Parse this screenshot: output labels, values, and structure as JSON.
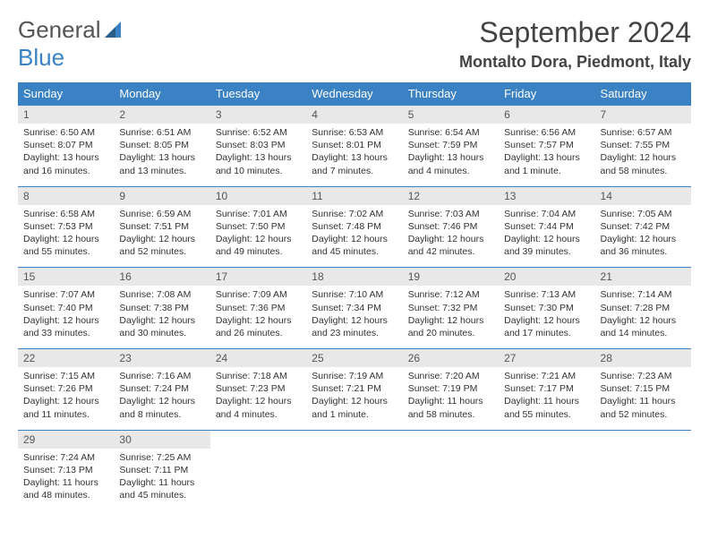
{
  "brand": {
    "part1": "General",
    "part2": "Blue"
  },
  "title": "September 2024",
  "location": "Montalto Dora, Piedmont, Italy",
  "colors": {
    "accent": "#3b82c4",
    "grey": "#e8e8e8",
    "text": "#333"
  },
  "dayNames": [
    "Sunday",
    "Monday",
    "Tuesday",
    "Wednesday",
    "Thursday",
    "Friday",
    "Saturday"
  ],
  "weeks": [
    [
      {
        "n": "1",
        "sr": "Sunrise: 6:50 AM",
        "ss": "Sunset: 8:07 PM",
        "d1": "Daylight: 13 hours",
        "d2": "and 16 minutes."
      },
      {
        "n": "2",
        "sr": "Sunrise: 6:51 AM",
        "ss": "Sunset: 8:05 PM",
        "d1": "Daylight: 13 hours",
        "d2": "and 13 minutes."
      },
      {
        "n": "3",
        "sr": "Sunrise: 6:52 AM",
        "ss": "Sunset: 8:03 PM",
        "d1": "Daylight: 13 hours",
        "d2": "and 10 minutes."
      },
      {
        "n": "4",
        "sr": "Sunrise: 6:53 AM",
        "ss": "Sunset: 8:01 PM",
        "d1": "Daylight: 13 hours",
        "d2": "and 7 minutes."
      },
      {
        "n": "5",
        "sr": "Sunrise: 6:54 AM",
        "ss": "Sunset: 7:59 PM",
        "d1": "Daylight: 13 hours",
        "d2": "and 4 minutes."
      },
      {
        "n": "6",
        "sr": "Sunrise: 6:56 AM",
        "ss": "Sunset: 7:57 PM",
        "d1": "Daylight: 13 hours",
        "d2": "and 1 minute."
      },
      {
        "n": "7",
        "sr": "Sunrise: 6:57 AM",
        "ss": "Sunset: 7:55 PM",
        "d1": "Daylight: 12 hours",
        "d2": "and 58 minutes."
      }
    ],
    [
      {
        "n": "8",
        "sr": "Sunrise: 6:58 AM",
        "ss": "Sunset: 7:53 PM",
        "d1": "Daylight: 12 hours",
        "d2": "and 55 minutes."
      },
      {
        "n": "9",
        "sr": "Sunrise: 6:59 AM",
        "ss": "Sunset: 7:51 PM",
        "d1": "Daylight: 12 hours",
        "d2": "and 52 minutes."
      },
      {
        "n": "10",
        "sr": "Sunrise: 7:01 AM",
        "ss": "Sunset: 7:50 PM",
        "d1": "Daylight: 12 hours",
        "d2": "and 49 minutes."
      },
      {
        "n": "11",
        "sr": "Sunrise: 7:02 AM",
        "ss": "Sunset: 7:48 PM",
        "d1": "Daylight: 12 hours",
        "d2": "and 45 minutes."
      },
      {
        "n": "12",
        "sr": "Sunrise: 7:03 AM",
        "ss": "Sunset: 7:46 PM",
        "d1": "Daylight: 12 hours",
        "d2": "and 42 minutes."
      },
      {
        "n": "13",
        "sr": "Sunrise: 7:04 AM",
        "ss": "Sunset: 7:44 PM",
        "d1": "Daylight: 12 hours",
        "d2": "and 39 minutes."
      },
      {
        "n": "14",
        "sr": "Sunrise: 7:05 AM",
        "ss": "Sunset: 7:42 PM",
        "d1": "Daylight: 12 hours",
        "d2": "and 36 minutes."
      }
    ],
    [
      {
        "n": "15",
        "sr": "Sunrise: 7:07 AM",
        "ss": "Sunset: 7:40 PM",
        "d1": "Daylight: 12 hours",
        "d2": "and 33 minutes."
      },
      {
        "n": "16",
        "sr": "Sunrise: 7:08 AM",
        "ss": "Sunset: 7:38 PM",
        "d1": "Daylight: 12 hours",
        "d2": "and 30 minutes."
      },
      {
        "n": "17",
        "sr": "Sunrise: 7:09 AM",
        "ss": "Sunset: 7:36 PM",
        "d1": "Daylight: 12 hours",
        "d2": "and 26 minutes."
      },
      {
        "n": "18",
        "sr": "Sunrise: 7:10 AM",
        "ss": "Sunset: 7:34 PM",
        "d1": "Daylight: 12 hours",
        "d2": "and 23 minutes."
      },
      {
        "n": "19",
        "sr": "Sunrise: 7:12 AM",
        "ss": "Sunset: 7:32 PM",
        "d1": "Daylight: 12 hours",
        "d2": "and 20 minutes."
      },
      {
        "n": "20",
        "sr": "Sunrise: 7:13 AM",
        "ss": "Sunset: 7:30 PM",
        "d1": "Daylight: 12 hours",
        "d2": "and 17 minutes."
      },
      {
        "n": "21",
        "sr": "Sunrise: 7:14 AM",
        "ss": "Sunset: 7:28 PM",
        "d1": "Daylight: 12 hours",
        "d2": "and 14 minutes."
      }
    ],
    [
      {
        "n": "22",
        "sr": "Sunrise: 7:15 AM",
        "ss": "Sunset: 7:26 PM",
        "d1": "Daylight: 12 hours",
        "d2": "and 11 minutes."
      },
      {
        "n": "23",
        "sr": "Sunrise: 7:16 AM",
        "ss": "Sunset: 7:24 PM",
        "d1": "Daylight: 12 hours",
        "d2": "and 8 minutes."
      },
      {
        "n": "24",
        "sr": "Sunrise: 7:18 AM",
        "ss": "Sunset: 7:23 PM",
        "d1": "Daylight: 12 hours",
        "d2": "and 4 minutes."
      },
      {
        "n": "25",
        "sr": "Sunrise: 7:19 AM",
        "ss": "Sunset: 7:21 PM",
        "d1": "Daylight: 12 hours",
        "d2": "and 1 minute."
      },
      {
        "n": "26",
        "sr": "Sunrise: 7:20 AM",
        "ss": "Sunset: 7:19 PM",
        "d1": "Daylight: 11 hours",
        "d2": "and 58 minutes."
      },
      {
        "n": "27",
        "sr": "Sunrise: 7:21 AM",
        "ss": "Sunset: 7:17 PM",
        "d1": "Daylight: 11 hours",
        "d2": "and 55 minutes."
      },
      {
        "n": "28",
        "sr": "Sunrise: 7:23 AM",
        "ss": "Sunset: 7:15 PM",
        "d1": "Daylight: 11 hours",
        "d2": "and 52 minutes."
      }
    ],
    [
      {
        "n": "29",
        "sr": "Sunrise: 7:24 AM",
        "ss": "Sunset: 7:13 PM",
        "d1": "Daylight: 11 hours",
        "d2": "and 48 minutes."
      },
      {
        "n": "30",
        "sr": "Sunrise: 7:25 AM",
        "ss": "Sunset: 7:11 PM",
        "d1": "Daylight: 11 hours",
        "d2": "and 45 minutes."
      },
      null,
      null,
      null,
      null,
      null
    ]
  ]
}
